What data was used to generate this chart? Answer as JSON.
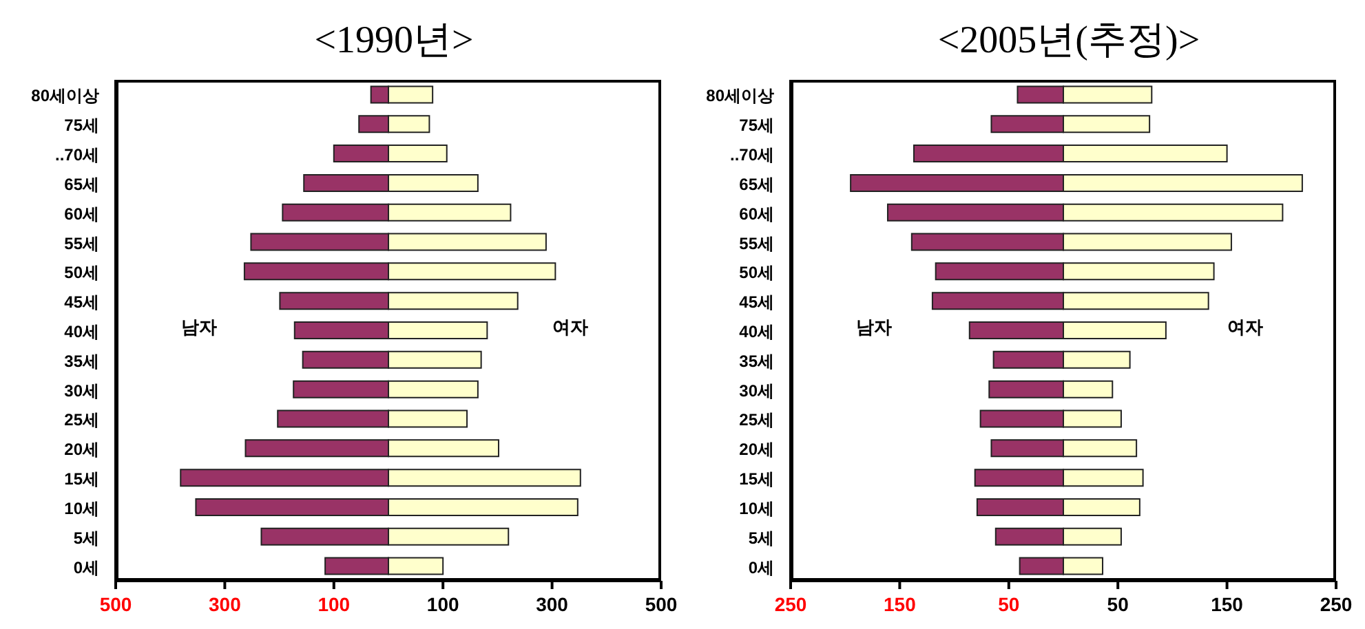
{
  "chart_data": [
    {
      "type": "bar",
      "orientation": "horizontal",
      "stacked": true,
      "title": "<1990년>",
      "categories": [
        "80세이상",
        "75세",
        "..70세",
        "65세",
        "60세",
        "55세",
        "50세",
        "45세",
        "40세",
        "35세",
        "30세",
        "25세",
        "20세",
        "15세",
        "10세",
        "5세",
        "0세"
      ],
      "series": [
        {
          "name": "남자",
          "color": "#993366",
          "values": [
            -32,
            -54,
            -100,
            -155,
            -194,
            -252,
            -264,
            -199,
            -172,
            -157,
            -174,
            -203,
            -262,
            -381,
            -353,
            -233,
            -116
          ]
        },
        {
          "name": "여자",
          "color": "#ffffcc",
          "values": [
            81,
            75,
            107,
            164,
            224,
            289,
            306,
            237,
            181,
            170,
            164,
            144,
            202,
            352,
            347,
            220,
            100
          ]
        }
      ],
      "xlim": [
        -500,
        500
      ],
      "xticks": [
        {
          "value": -500,
          "label": "500"
        },
        {
          "value": -300,
          "label": "300"
        },
        {
          "value": -100,
          "label": "100"
        },
        100,
        300,
        500
      ]
    },
    {
      "type": "bar",
      "orientation": "horizontal",
      "stacked": true,
      "title": "<2005년(추정)>",
      "categories": [
        "80세이상",
        "75세",
        "..70세",
        "65세",
        "60세",
        "55세",
        "50세",
        "45세",
        "40세",
        "35세",
        "30세",
        "25세",
        "20세",
        "15세",
        "10세",
        "5세",
        "0세"
      ],
      "series": [
        {
          "name": "남자",
          "color": "#993366",
          "values": [
            -42,
            -66,
            -137,
            -195,
            -161,
            -139,
            -117,
            -120,
            -86,
            -64,
            -68,
            -76,
            -66,
            -81,
            -79,
            -62,
            -40
          ]
        },
        {
          "name": "여자",
          "color": "#ffffcc",
          "values": [
            81,
            79,
            150,
            219,
            201,
            154,
            138,
            133,
            94,
            61,
            45,
            53,
            67,
            73,
            70,
            53,
            36
          ]
        }
      ],
      "xlim": [
        -250,
        250
      ],
      "xticks": [
        {
          "value": -250,
          "label": "250"
        },
        {
          "value": -150,
          "label": "150"
        },
        {
          "value": -50,
          "label": "50"
        },
        50,
        150,
        250
      ]
    }
  ]
}
